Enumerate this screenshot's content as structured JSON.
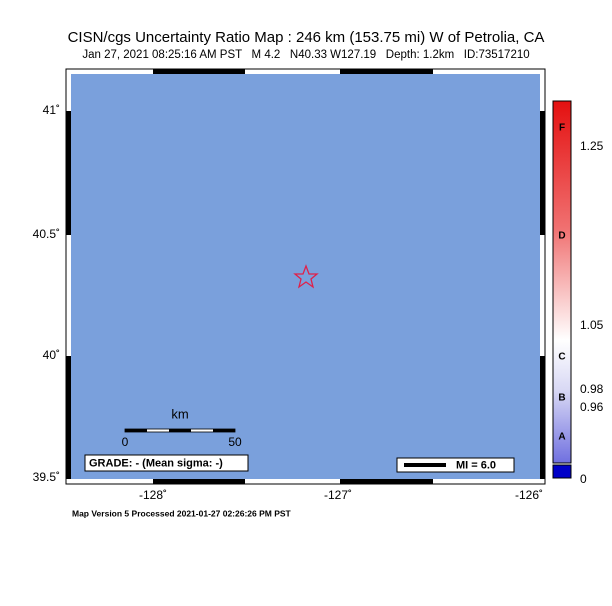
{
  "header": {
    "title": "CISN/cgs Uncertainty Ratio Map : 246 km (153.75 mi) W of Petrolia, CA",
    "subtitle": "Jan 27, 2021 08:25:16 AM PST   M 4.2   N40.33 W127.19   Depth: 1.2km   ID:73517210"
  },
  "map": {
    "lat_labels": [
      "41˚",
      "40.5˚",
      "40˚",
      "39.5˚"
    ],
    "lon_labels": [
      "-128˚",
      "-127˚",
      "-126˚"
    ],
    "scale": {
      "unit": "km",
      "labels": [
        "0",
        "50"
      ]
    },
    "grade": "GRADE: - (Mean sigma: -)",
    "legend": "MI = 6.0"
  },
  "colorbar": {
    "labels": [
      "1.25",
      "1.05",
      "0.98",
      "0.96",
      "0"
    ],
    "grades": [
      "F",
      "D",
      "C",
      "B",
      "A"
    ]
  },
  "footer": "Map Version 5 Processed 2021-01-27 02:26:26 PM PST"
}
